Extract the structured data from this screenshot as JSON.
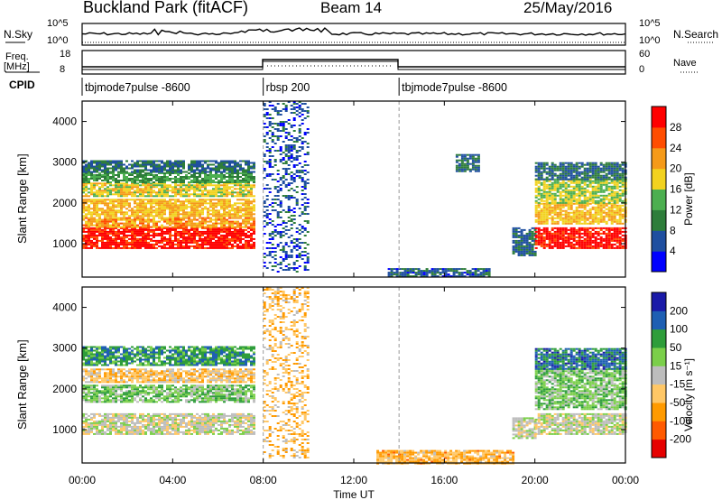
{
  "header": {
    "site": "Buckland Park (fitACF)",
    "beam": "Beam 14",
    "date": "25/May/2016"
  },
  "top_strip": {
    "left_label_top": "N.Sky",
    "left_ticks": [
      "10^5",
      "10^0"
    ],
    "right_ticks": [
      "10^5",
      "10^0"
    ],
    "right_label": "N.Search",
    "freq_label": "Freq.",
    "freq_unit": "[MHz]",
    "freq_ticks": [
      "18",
      "8"
    ],
    "nave_ticks": [
      "60",
      "0"
    ],
    "nave_label": "Nave",
    "cpid_label": "CPID",
    "cpid_segments": [
      {
        "label": "tbjmode7pulse -8600",
        "start_hour": 0,
        "end_hour": 8
      },
      {
        "label": "rbsp 200",
        "start_hour": 8,
        "end_hour": 14
      },
      {
        "label": "tbjmode7pulse -8600",
        "start_hour": 14,
        "end_hour": 24
      }
    ]
  },
  "colors": {
    "power_scale": [
      "#0000ff",
      "#1f4fa0",
      "#2e7d3a",
      "#4caf50",
      "#f2d21f",
      "#f59a19",
      "#ff4d00",
      "#ff0000"
    ],
    "velocity_scale": [
      "#e60000",
      "#ff5a00",
      "#ff9a00",
      "#ffc766",
      "#bdbdbd",
      "#7bcf4a",
      "#2e9d3a",
      "#1e5fb3",
      "#1a1aa8"
    ],
    "ground_scatter": "#808080"
  },
  "chart_data": [
    {
      "type": "heatmap",
      "title": "Power",
      "xlabel": "Time UT",
      "ylabel": "Slant Range [km]",
      "xlim": [
        0,
        24
      ],
      "ylim": [
        180,
        4500
      ],
      "x_ticks": [
        "00:00",
        "04:00",
        "08:00",
        "12:00",
        "16:00",
        "20:00",
        "00:00"
      ],
      "y_ticks": [
        "1000",
        "2000",
        "3000",
        "4000"
      ],
      "colorbar": {
        "label": "Power [dB]",
        "ticks": [
          "4",
          "8",
          "12",
          "16",
          "20",
          "24",
          "28"
        ],
        "range": [
          0,
          32
        ]
      },
      "regions": [
        {
          "t0": 0.0,
          "t1": 7.6,
          "r0": 900,
          "r1": 1400,
          "value": 30
        },
        {
          "t0": 0.0,
          "t1": 7.6,
          "r0": 1400,
          "r1": 1650,
          "value": 22
        },
        {
          "t0": 0.0,
          "t1": 7.6,
          "r0": 1700,
          "r1": 2100,
          "value": 20
        },
        {
          "t0": 0.0,
          "t1": 7.6,
          "r0": 2150,
          "r1": 2500,
          "value": 18
        },
        {
          "t0": 0.0,
          "t1": 7.6,
          "r0": 2500,
          "r1": 2750,
          "value": 12
        },
        {
          "t0": 0.0,
          "t1": 7.6,
          "r0": 2750,
          "r1": 3050,
          "value": 8
        },
        {
          "t0": 8.0,
          "t1": 10.0,
          "r0": 300,
          "r1": 4500,
          "value": 6
        },
        {
          "t0": 13.5,
          "t1": 18.0,
          "r0": 180,
          "r1": 400,
          "value": 7
        },
        {
          "t0": 16.5,
          "t1": 17.5,
          "r0": 2800,
          "r1": 3200,
          "value": 8
        },
        {
          "t0": 19.0,
          "t1": 20.0,
          "r0": 700,
          "r1": 1400,
          "value": 8
        },
        {
          "t0": 20.0,
          "t1": 24.0,
          "r0": 900,
          "r1": 1400,
          "value": 30
        },
        {
          "t0": 20.0,
          "t1": 24.0,
          "r0": 1500,
          "r1": 2000,
          "value": 20
        },
        {
          "t0": 20.0,
          "t1": 24.0,
          "r0": 2000,
          "r1": 2600,
          "value": 16
        },
        {
          "t0": 20.0,
          "t1": 24.0,
          "r0": 2600,
          "r1": 3000,
          "value": 8
        }
      ]
    },
    {
      "type": "heatmap",
      "title": "Velocity",
      "xlabel": "Time UT",
      "ylabel": "Slant Range [km]",
      "xlim": [
        0,
        24
      ],
      "ylim": [
        180,
        4500
      ],
      "x_ticks": [
        "00:00",
        "04:00",
        "08:00",
        "12:00",
        "16:00",
        "20:00",
        "00:00"
      ],
      "y_ticks": [
        "1000",
        "2000",
        "3000",
        "4000"
      ],
      "colorbar": {
        "label": "Velocity [m s⁻¹]",
        "ticks": [
          "200",
          "100",
          "50",
          "15",
          "-15",
          "-50",
          "-100",
          "-200"
        ],
        "range": [
          -250,
          250
        ]
      },
      "regions": [
        {
          "t0": 0.0,
          "t1": 7.6,
          "r0": 900,
          "r1": 1400,
          "value": 0
        },
        {
          "t0": 0.0,
          "t1": 7.6,
          "r0": 1700,
          "r1": 2100,
          "value": 60
        },
        {
          "t0": 0.0,
          "t1": 7.6,
          "r0": 2150,
          "r1": 2500,
          "value": -60
        },
        {
          "t0": 0.0,
          "t1": 7.6,
          "r0": 2600,
          "r1": 3050,
          "value": 120
        },
        {
          "t0": 8.0,
          "t1": 10.0,
          "r0": 300,
          "r1": 4500,
          "value": -70
        },
        {
          "t0": 13.0,
          "t1": 19.0,
          "r0": 180,
          "r1": 500,
          "value": -80
        },
        {
          "t0": 19.0,
          "t1": 20.0,
          "r0": 800,
          "r1": 1300,
          "value": 0
        },
        {
          "t0": 20.0,
          "t1": 24.0,
          "r0": 900,
          "r1": 1400,
          "value": 0
        },
        {
          "t0": 20.0,
          "t1": 24.0,
          "r0": 1500,
          "r1": 2500,
          "value": 60
        },
        {
          "t0": 20.0,
          "t1": 24.0,
          "r0": 2500,
          "r1": 3000,
          "value": 150
        }
      ]
    }
  ]
}
